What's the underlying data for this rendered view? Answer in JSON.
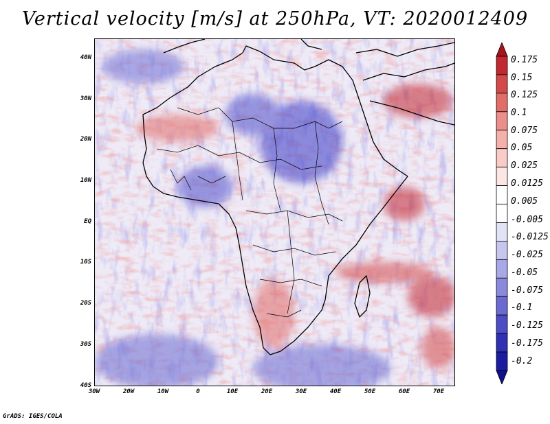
{
  "title": "Vertical velocity [m/s] at 250hPa, VT: 2020012409",
  "map": {
    "variable": "vertical-velocity",
    "units": "m/s",
    "level": "250hPa",
    "valid_time": "2020012409",
    "region": "Africa"
  },
  "y_ticks": [
    "40N",
    "30N",
    "20N",
    "10N",
    "EQ",
    "10S",
    "20S",
    "30S",
    "40S"
  ],
  "x_ticks": [
    "30W",
    "20W",
    "10W",
    "0",
    "10E",
    "20E",
    "30E",
    "40E",
    "50E",
    "60E",
    "70E"
  ],
  "colorbar": {
    "labels": [
      "0.175",
      "0.15",
      "0.125",
      "0.1",
      "0.075",
      "0.05",
      "0.025",
      "0.0125",
      "0.005",
      "-0.005",
      "-0.0125",
      "-0.025",
      "-0.05",
      "-0.075",
      "-0.1",
      "-0.125",
      "-0.175",
      "-0.2"
    ],
    "colors": [
      "#a8141c",
      "#c22830",
      "#d44a4a",
      "#e26c68",
      "#ec8f8a",
      "#f4b0ab",
      "#f9ccc8",
      "#fce6e4",
      "#ffffff",
      "#ffffff",
      "#e3e3f7",
      "#c6c6ef",
      "#a8a8e6",
      "#8a8adc",
      "#6a6ad2",
      "#4c4cc6",
      "#3030b4",
      "#1c1ca0",
      "#10108a"
    ]
  },
  "credit": "GrADS: IGES/COLA"
}
